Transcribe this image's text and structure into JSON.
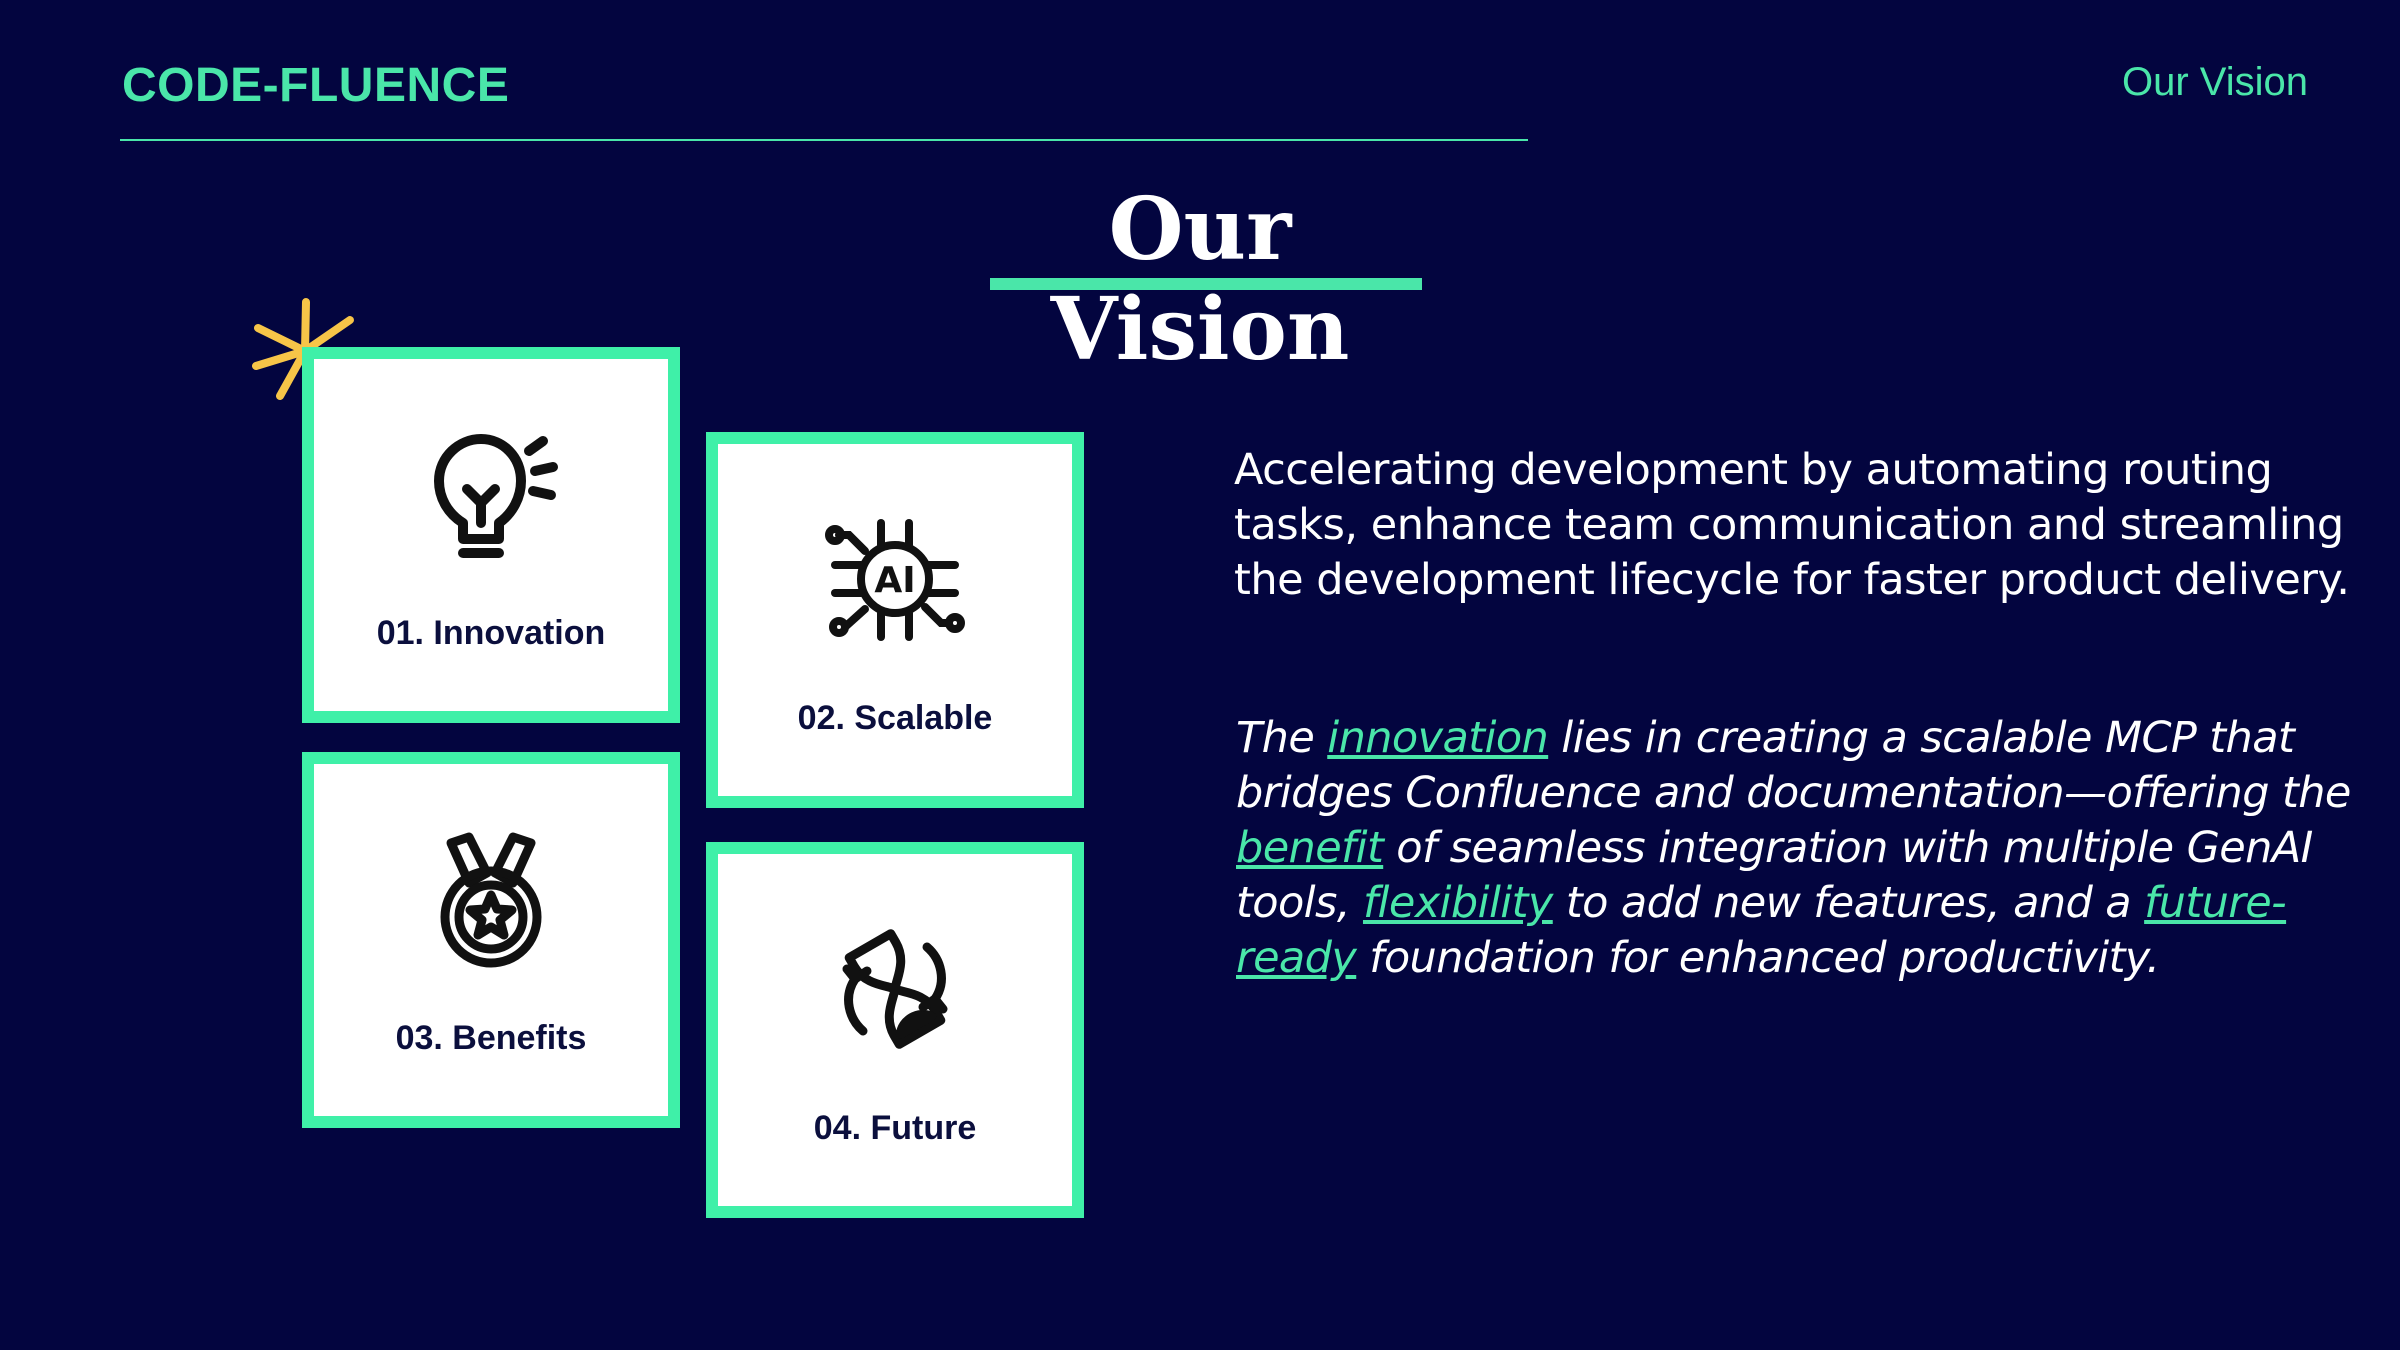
{
  "header": {
    "brand": "CODE-FLUENCE",
    "section": "Our Vision"
  },
  "title": "Our Vision",
  "colors": {
    "background": "#03053f",
    "accent": "#4ae6a9",
    "card_border": "#3ff0a8",
    "sparkle": "#f7c548"
  },
  "cards": [
    {
      "label": "01. Innovation",
      "icon": "lightbulb-icon"
    },
    {
      "label": "02. Scalable",
      "icon": "ai-chip-icon"
    },
    {
      "label": "03. Benefits",
      "icon": "medal-icon"
    },
    {
      "label": "04. Future",
      "icon": "hourglass-icon"
    }
  ],
  "description": "Accelerating development by automating routing tasks, enhance team communication and streamling the development lifecycle for faster product delivery.",
  "detail": {
    "t1": "The ",
    "h1": "innovation",
    "t2": " lies in creating a scalable MCP that bridges Confluence and documentation—offering the ",
    "h2": "benefit",
    "t3": " of seamless integration with multiple GenAI tools, ",
    "h3": "flexibility",
    "t4": " to add new features, and a ",
    "h4": "future-ready",
    "t5": " foundation for enhanced productivity."
  }
}
